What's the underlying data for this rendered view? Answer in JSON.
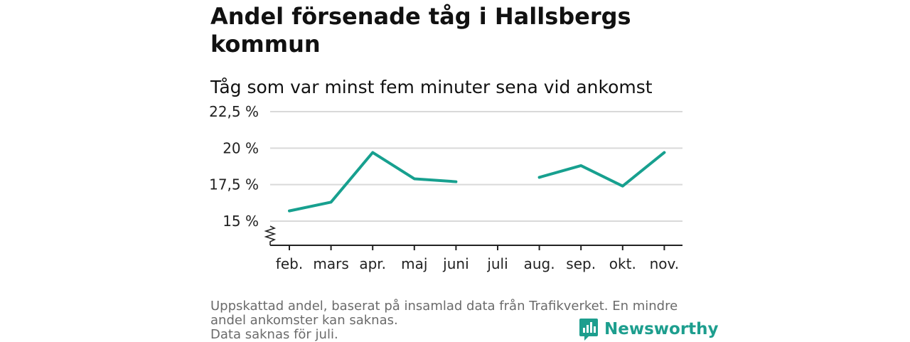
{
  "header": {
    "title": "Andel försenade tåg i Hallsbergs kommun",
    "subtitle": "Tåg som var minst fem minuter sena vid ankomst"
  },
  "chart_data": {
    "type": "line",
    "categories": [
      "feb.",
      "mars",
      "apr.",
      "maj",
      "juni",
      "juli",
      "aug.",
      "sep.",
      "okt.",
      "nov."
    ],
    "series": [
      {
        "values": [
          15.7,
          16.3,
          19.7,
          17.9,
          17.7,
          null,
          18.0,
          18.8,
          17.4,
          19.7
        ]
      }
    ],
    "yticks": [
      15,
      17.5,
      20,
      22.5
    ],
    "ytick_labels": [
      "15 %",
      "17,5 %",
      "20 %",
      "22,5 %"
    ],
    "ylim": [
      13.4,
      22.5
    ],
    "axis_break": true,
    "grid": true,
    "line_color": "#17a08f",
    "grid_color": "#d9d9d9"
  },
  "footnote": {
    "line1": "Uppskattad andel, baserat på insamlad data från Trafikverket. En mindre andel ankomster kan saknas.",
    "line2": "Data saknas för juli."
  },
  "brand": {
    "name": "Newsworthy",
    "icon": "newsworthy-logo-icon",
    "color": "#1d9e8e"
  }
}
